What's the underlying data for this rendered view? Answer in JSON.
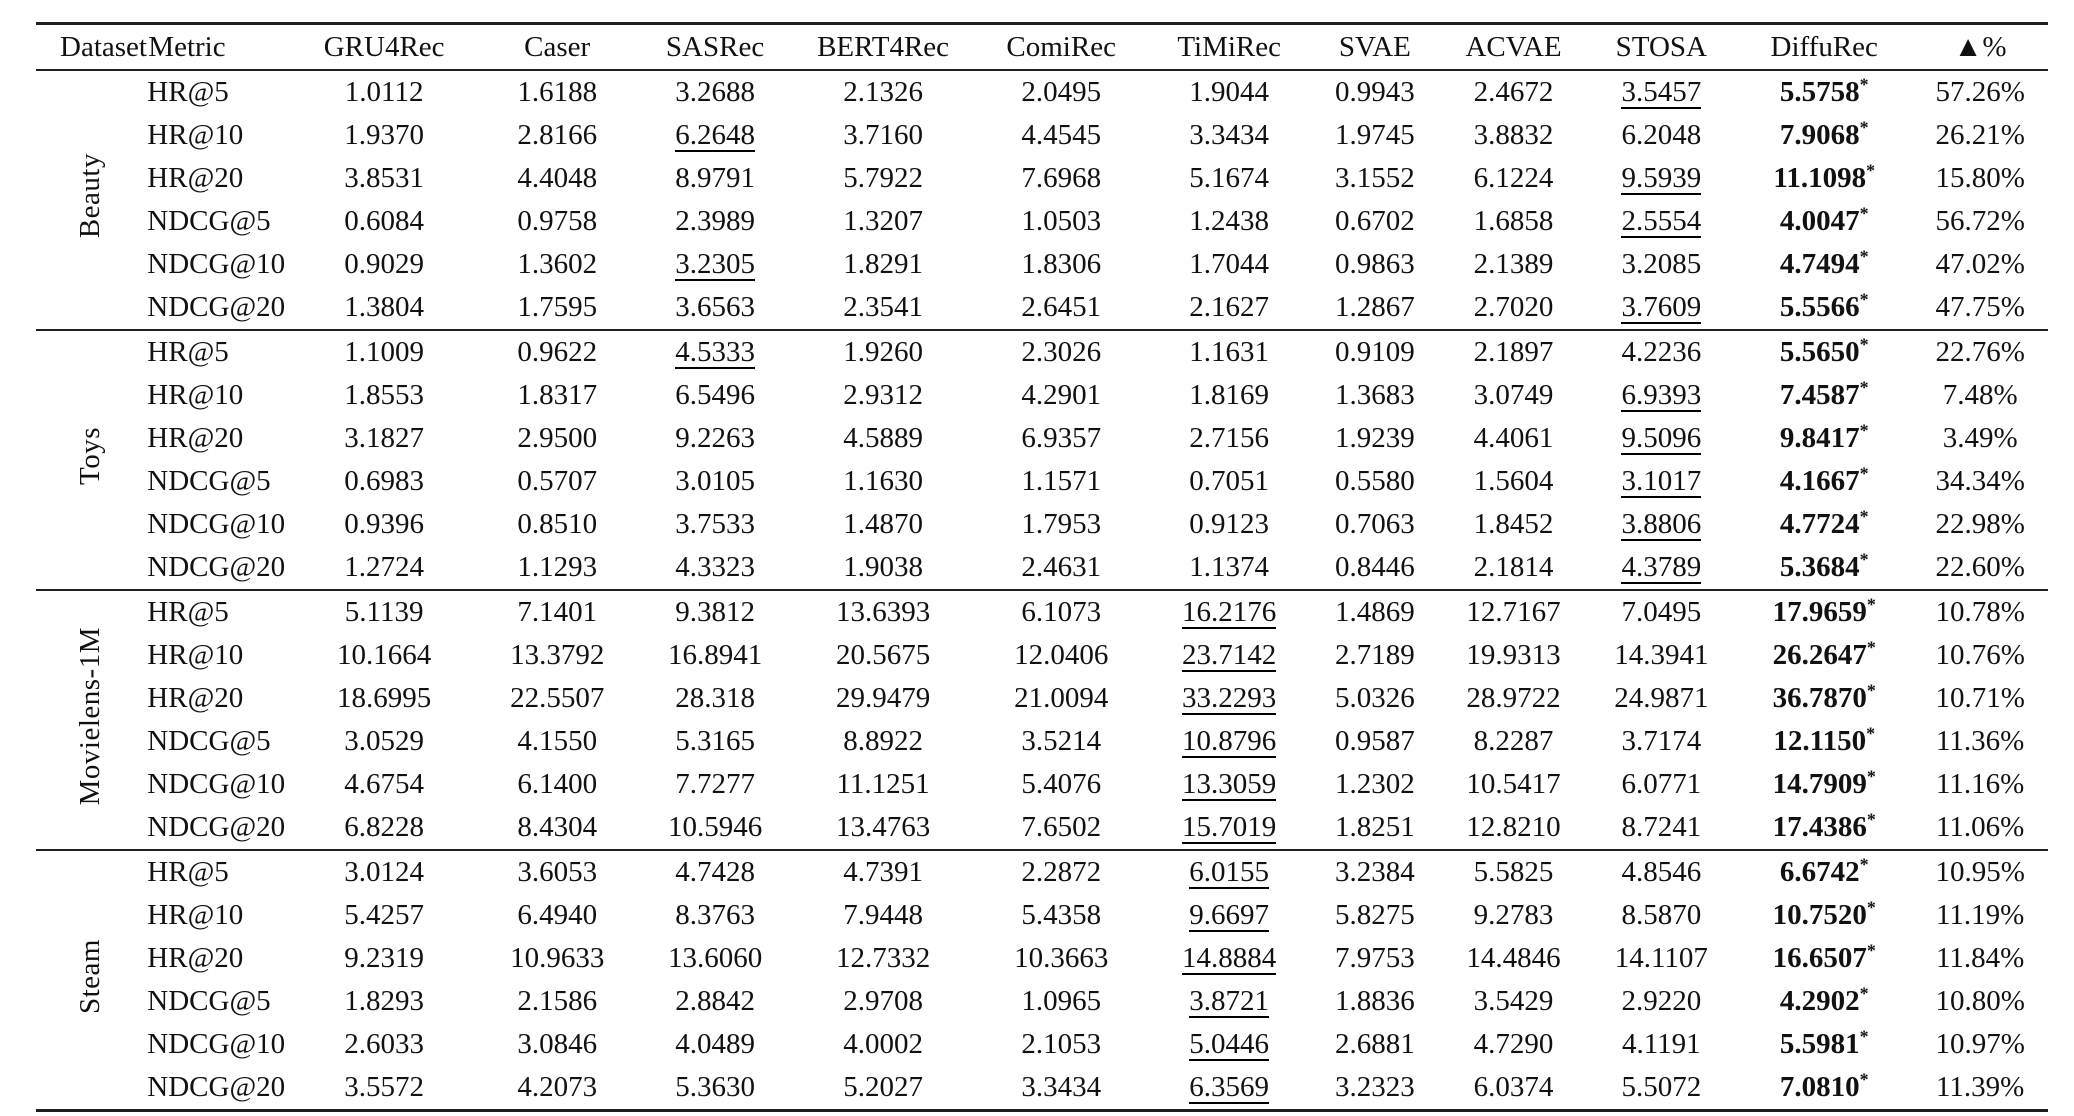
{
  "table": {
    "significance_marker": "*",
    "columns": [
      "Dataset",
      "Metric",
      "GRU4Rec",
      "Caser",
      "SASRec",
      "BERT4Rec",
      "ComiRec",
      "TiMiRec",
      "SVAE",
      "ACVAE",
      "STOSA",
      "DiffuRec",
      "▲%"
    ],
    "groups": [
      {
        "dataset": "Beauty",
        "rows": [
          {
            "metric": "HR@5",
            "values": [
              "1.0112",
              "1.6188",
              "3.2688",
              "2.1326",
              "2.0495",
              "1.9044",
              "0.9943",
              "2.4672",
              "3.5457"
            ],
            "underline": 8,
            "best": "5.5758",
            "improve": "57.26%"
          },
          {
            "metric": "HR@10",
            "values": [
              "1.9370",
              "2.8166",
              "6.2648",
              "3.7160",
              "4.4545",
              "3.3434",
              "1.9745",
              "3.8832",
              "6.2048"
            ],
            "underline": 2,
            "best": "7.9068",
            "improve": "26.21%"
          },
          {
            "metric": "HR@20",
            "values": [
              "3.8531",
              "4.4048",
              "8.9791",
              "5.7922",
              "7.6968",
              "5.1674",
              "3.1552",
              "6.1224",
              "9.5939"
            ],
            "underline": 8,
            "best": "11.1098",
            "improve": "15.80%"
          },
          {
            "metric": "NDCG@5",
            "values": [
              "0.6084",
              "0.9758",
              "2.3989",
              "1.3207",
              "1.0503",
              "1.2438",
              "0.6702",
              "1.6858",
              "2.5554"
            ],
            "underline": 8,
            "best": "4.0047",
            "improve": "56.72%"
          },
          {
            "metric": "NDCG@10",
            "values": [
              "0.9029",
              "1.3602",
              "3.2305",
              "1.8291",
              "1.8306",
              "1.7044",
              "0.9863",
              "2.1389",
              "3.2085"
            ],
            "underline": 2,
            "best": "4.7494",
            "improve": "47.02%"
          },
          {
            "metric": "NDCG@20",
            "values": [
              "1.3804",
              "1.7595",
              "3.6563",
              "2.3541",
              "2.6451",
              "2.1627",
              "1.2867",
              "2.7020",
              "3.7609"
            ],
            "underline": 8,
            "best": "5.5566",
            "improve": "47.75%"
          }
        ]
      },
      {
        "dataset": "Toys",
        "rows": [
          {
            "metric": "HR@5",
            "values": [
              "1.1009",
              "0.9622",
              "4.5333",
              "1.9260",
              "2.3026",
              "1.1631",
              "0.9109",
              "2.1897",
              "4.2236"
            ],
            "underline": 2,
            "best": "5.5650",
            "improve": "22.76%"
          },
          {
            "metric": "HR@10",
            "values": [
              "1.8553",
              "1.8317",
              "6.5496",
              "2.9312",
              "4.2901",
              "1.8169",
              "1.3683",
              "3.0749",
              "6.9393"
            ],
            "underline": 8,
            "best": "7.4587",
            "improve": "7.48%"
          },
          {
            "metric": "HR@20",
            "values": [
              "3.1827",
              "2.9500",
              "9.2263",
              "4.5889",
              "6.9357",
              "2.7156",
              "1.9239",
              "4.4061",
              "9.5096"
            ],
            "underline": 8,
            "best": "9.8417",
            "improve": "3.49%"
          },
          {
            "metric": "NDCG@5",
            "values": [
              "0.6983",
              "0.5707",
              "3.0105",
              "1.1630",
              "1.1571",
              "0.7051",
              "0.5580",
              "1.5604",
              "3.1017"
            ],
            "underline": 8,
            "best": "4.1667",
            "improve": "34.34%"
          },
          {
            "metric": "NDCG@10",
            "values": [
              "0.9396",
              "0.8510",
              "3.7533",
              "1.4870",
              "1.7953",
              "0.9123",
              "0.7063",
              "1.8452",
              "3.8806"
            ],
            "underline": 8,
            "best": "4.7724",
            "improve": "22.98%"
          },
          {
            "metric": "NDCG@20",
            "values": [
              "1.2724",
              "1.1293",
              "4.3323",
              "1.9038",
              "2.4631",
              "1.1374",
              "0.8446",
              "2.1814",
              "4.3789"
            ],
            "underline": 8,
            "best": "5.3684",
            "improve": "22.60%"
          }
        ]
      },
      {
        "dataset": "Movielens-1M",
        "rows": [
          {
            "metric": "HR@5",
            "values": [
              "5.1139",
              "7.1401",
              "9.3812",
              "13.6393",
              "6.1073",
              "16.2176",
              "1.4869",
              "12.7167",
              "7.0495"
            ],
            "underline": 5,
            "best": "17.9659",
            "improve": "10.78%"
          },
          {
            "metric": "HR@10",
            "values": [
              "10.1664",
              "13.3792",
              "16.8941",
              "20.5675",
              "12.0406",
              "23.7142",
              "2.7189",
              "19.9313",
              "14.3941"
            ],
            "underline": 5,
            "best": "26.2647",
            "improve": "10.76%"
          },
          {
            "metric": "HR@20",
            "values": [
              "18.6995",
              "22.5507",
              "28.318",
              "29.9479",
              "21.0094",
              "33.2293",
              "5.0326",
              "28.9722",
              "24.9871"
            ],
            "underline": 5,
            "best": "36.7870",
            "improve": "10.71%"
          },
          {
            "metric": "NDCG@5",
            "values": [
              "3.0529",
              "4.1550",
              "5.3165",
              "8.8922",
              "3.5214",
              "10.8796",
              "0.9587",
              "8.2287",
              "3.7174"
            ],
            "underline": 5,
            "best": "12.1150",
            "improve": "11.36%"
          },
          {
            "metric": "NDCG@10",
            "values": [
              "4.6754",
              "6.1400",
              "7.7277",
              "11.1251",
              "5.4076",
              "13.3059",
              "1.2302",
              "10.5417",
              "6.0771"
            ],
            "underline": 5,
            "best": "14.7909",
            "improve": "11.16%"
          },
          {
            "metric": "NDCG@20",
            "values": [
              "6.8228",
              "8.4304",
              "10.5946",
              "13.4763",
              "7.6502",
              "15.7019",
              "1.8251",
              "12.8210",
              "8.7241"
            ],
            "underline": 5,
            "best": "17.4386",
            "improve": "11.06%"
          }
        ]
      },
      {
        "dataset": "Steam",
        "rows": [
          {
            "metric": "HR@5",
            "values": [
              "3.0124",
              "3.6053",
              "4.7428",
              "4.7391",
              "2.2872",
              "6.0155",
              "3.2384",
              "5.5825",
              "4.8546"
            ],
            "underline": 5,
            "best": "6.6742",
            "improve": "10.95%"
          },
          {
            "metric": "HR@10",
            "values": [
              "5.4257",
              "6.4940",
              "8.3763",
              "7.9448",
              "5.4358",
              "9.6697",
              "5.8275",
              "9.2783",
              "8.5870"
            ],
            "underline": 5,
            "best": "10.7520",
            "improve": "11.19%"
          },
          {
            "metric": "HR@20",
            "values": [
              "9.2319",
              "10.9633",
              "13.6060",
              "12.7332",
              "10.3663",
              "14.8884",
              "7.9753",
              "14.4846",
              "14.1107"
            ],
            "underline": 5,
            "best": "16.6507",
            "improve": "11.84%"
          },
          {
            "metric": "NDCG@5",
            "values": [
              "1.8293",
              "2.1586",
              "2.8842",
              "2.9708",
              "1.0965",
              "3.8721",
              "1.8836",
              "3.5429",
              "2.9220"
            ],
            "underline": 5,
            "best": "4.2902",
            "improve": "10.80%"
          },
          {
            "metric": "NDCG@10",
            "values": [
              "2.6033",
              "3.0846",
              "4.0489",
              "4.0002",
              "2.1053",
              "5.0446",
              "2.6881",
              "4.7290",
              "4.1191"
            ],
            "underline": 5,
            "best": "5.5981",
            "improve": "10.97%"
          },
          {
            "metric": "NDCG@20",
            "values": [
              "3.5572",
              "4.2073",
              "5.3630",
              "5.2027",
              "3.3434",
              "6.3569",
              "3.2323",
              "6.0374",
              "5.5072"
            ],
            "underline": 5,
            "best": "7.0810",
            "improve": "11.39%"
          }
        ]
      }
    ]
  }
}
